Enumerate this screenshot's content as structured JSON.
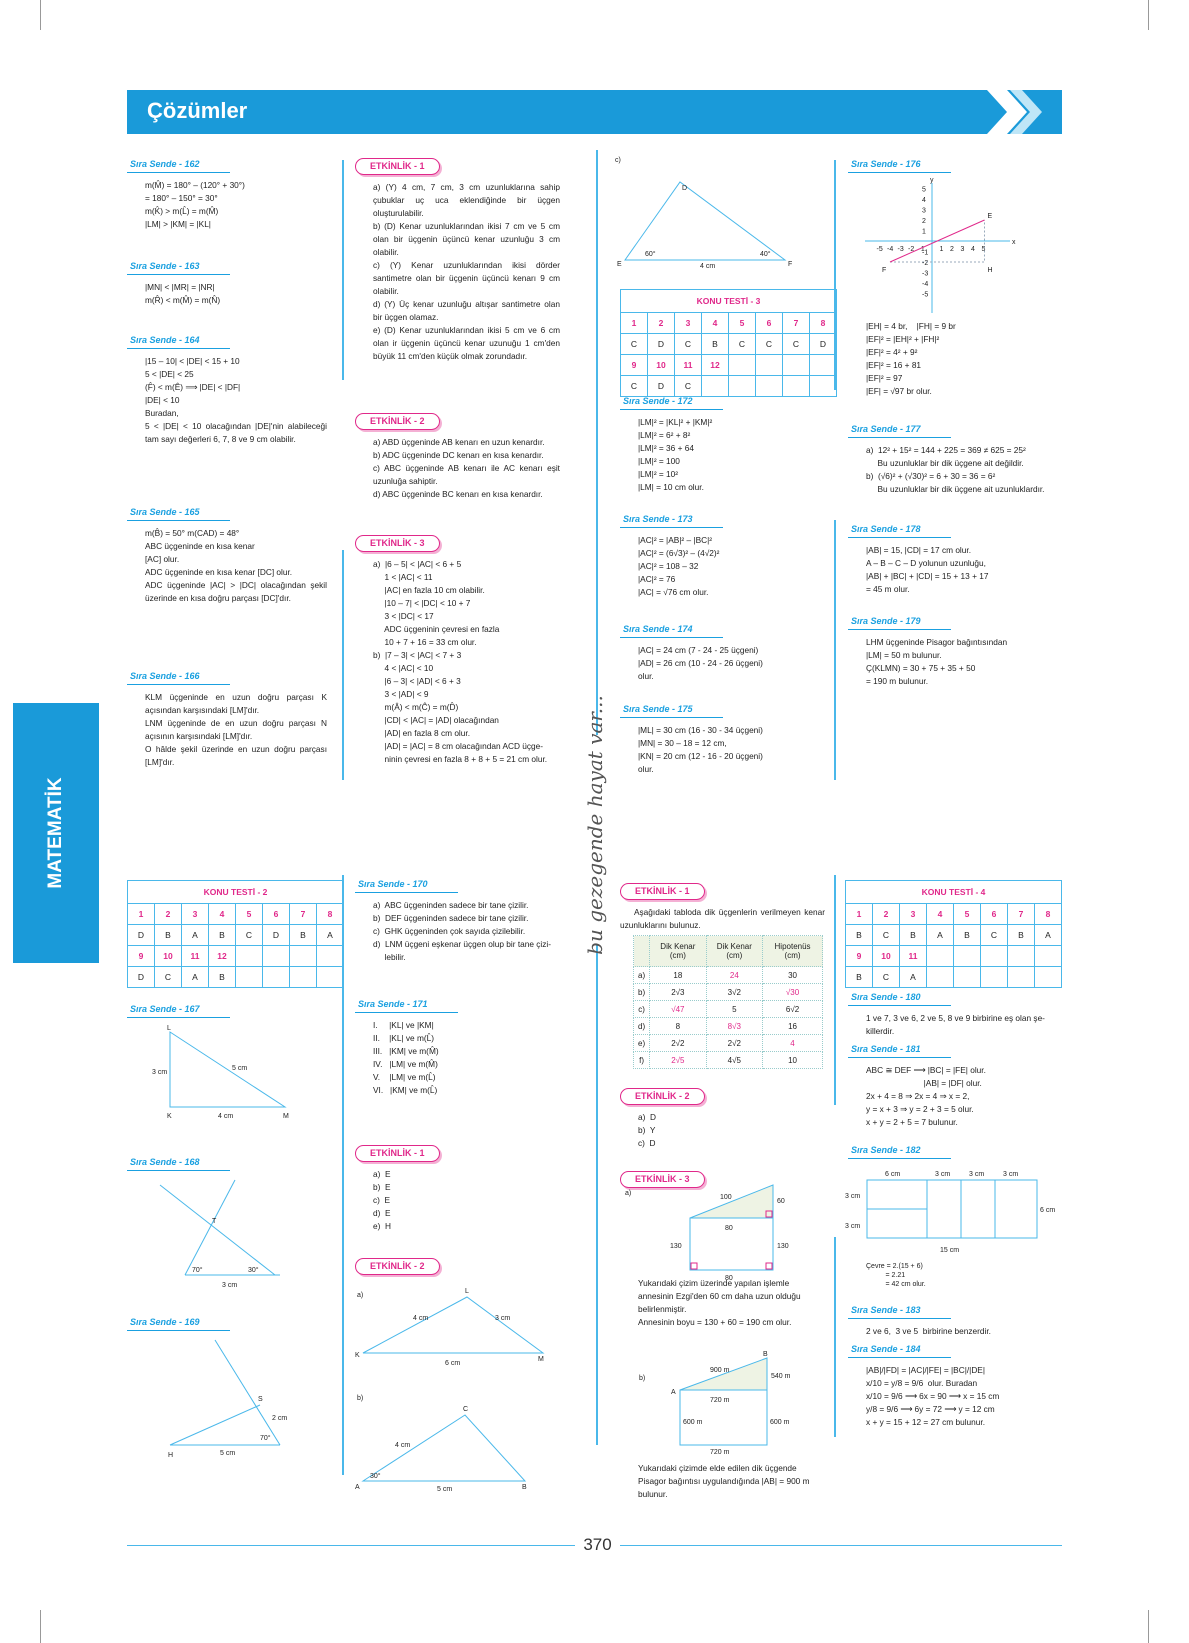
{
  "header": {
    "title": "Çözümler"
  },
  "side_tab": "MATEMATİK",
  "watermark": "bu gezegende hayat var...",
  "page_number": "370",
  "colors": {
    "accent": "#1a9ad9",
    "pink": "#e0288a"
  },
  "sections": {
    "s162": {
      "title": "Sıra Sende - 162",
      "lines": [
        "m(M̂) = 180° – (120° + 30°)",
        "= 180° – 150° = 30°",
        "m(K̂) > m(L̂) = m(M̂)",
        "|LM| > |KM| = |KL|"
      ]
    },
    "s163": {
      "title": "Sıra Sende - 163",
      "lines": [
        "|MN| < |MR| = |NR|",
        "m(R̂) < m(M̂) = m(N̂)"
      ]
    },
    "s164": {
      "title": "Sıra Sende - 164",
      "lines": [
        "|15 – 10| < |DE| < 15 + 10",
        "5 < |DE| < 25",
        "(F̂) < m(Ê) ⟹ |DE| < |DF|",
        "|DE| < 10",
        "Buradan,",
        "5 < |DE| < 10 olacağından |DE|'nin alabileceği tam sayı değerleri 6, 7, 8 ve 9 cm olabilir."
      ]
    },
    "s165": {
      "title": "Sıra Sende - 165",
      "lines": [
        "m(B̂) = 50°            m(CAD) = 48°",
        "ABC üçgeninde en kısa kenar",
        "[AC] olur.",
        "ADC üçgeninde en kısa kenar [DC] olur.",
        "ADC üçgeninde |AC| > |DC| olacağından şekil üzerinde en kısa doğru parçası [DC]'dır."
      ]
    },
    "s166": {
      "title": "Sıra Sende - 166",
      "lines": [
        "KLM üçgeninde en uzun doğru parçası K açısından karşısındaki [LM]'dır.",
        "LNM üçgeninde de en uzun doğru parçası N açısının karşısındaki [LM]'dır.",
        "O hâlde şekil üzerinde en uzun doğru parçası [LM]'dır."
      ]
    },
    "s167": {
      "title": "Sıra Sende - 167",
      "labels": [
        "L",
        "3 cm",
        "5 cm",
        "K",
        "4 cm",
        "M"
      ]
    },
    "s168": {
      "title": "Sıra Sende - 168",
      "labels": [
        "T",
        "70°",
        "30°",
        "3 cm"
      ]
    },
    "s169": {
      "title": "Sıra Sende - 169",
      "labels": [
        "S",
        "2 cm",
        "70°",
        "H",
        "5 cm"
      ]
    },
    "e1": {
      "title": "ETKİNLİK - 1",
      "lines": [
        "a)  (Y)  4 cm, 7 cm, 3 cm uzunluklarına sahip çubuklar uç uca eklendiğinde bir üçgen oluşturulabilir.",
        "b)  (D)  Kenar uzunluklarından ikisi 7 cm ve 5 cm olan bir üçgenin üçüncü kenar uzunluğu 3 cm olabilir.",
        "c)  (Y)  Kenar uzunluklarından ikisi dörder santimetre olan bir üçgenin üçüncü kenarı 9 cm olabilir.",
        "d)  (Y)  Üç kenar uzunluğu altışar santimetre olan bir üçgen olamaz.",
        "e)  (D)  Kenar uzunluklarından ikisi 5 cm ve 6 cm olan ir üçgenin üçüncü kenar uzunuğu 1 cm'den büyük 11 cm'den küçük olmak zorundadır."
      ]
    },
    "e2": {
      "title": "ETKİNLİK - 2",
      "lines": [
        "a)  ABD üçgeninde AB kenarı en uzun kenardır.",
        "b)  ADC üçgeninde DC kenarı en kısa kenardır.",
        "c)  ABC üçgeninde AB kenarı ile AC kenarı eşit uzunluğa sahiptir.",
        "d)  ABC üçgeninde BC kenarı en kısa kenardır."
      ]
    },
    "e3": {
      "title": "ETKİNLİK - 3",
      "lines": [
        "a)  |6 – 5| < |AC| < 6 + 5",
        "     1 < |AC| < 11",
        "     |AC| en fazla 10 cm olabilir.",
        "     |10 – 7| < |DC| < 10 + 7",
        "     3 < |DC| < 17",
        "     ADC üçgeninin çevresi en fazla",
        "     10 + 7 + 16 = 33 cm olur.",
        "",
        "b)  |7 – 3| < |AC| < 7 + 3",
        "     4 < |AC| < 10",
        "     |6 – 3| < |AD| < 6 + 3",
        "     3 < |AD| < 9",
        "     m(Â) < m(Ĉ) = m(D̂)",
        "     |CD| < |AC| = |AD| olacağından",
        "     |AD| en fazla 8 cm olur.",
        "     |AD| = |AC| = 8 cm olacağından ACD üçge-",
        "     ninin çevresi en fazla 8 + 8 + 5 = 21 cm olur."
      ]
    },
    "s170": {
      "title": "Sıra Sende - 170",
      "lines": [
        "a)  ABC üçgeninden sadece bir tane çizilir.",
        "b)  DEF üçgeninden sadece bir tane çizilir.",
        "c)  GHK üçgeninden çok sayıda çizilebilir.",
        "d)  LNM üçgeni eşkenar üçgen olup bir tane çizi-",
        "     lebilir."
      ]
    },
    "s171": {
      "title": "Sıra Sende - 171",
      "lines": [
        "I.     |KL| ve |KM|",
        "II.    |KL| ve m(L̂)",
        "III.   |KM| ve m(M̂)",
        "IV.   |LM| ve m(M̂)",
        "V.    |LM| ve m(L̂)",
        "VI.   |KM| ve m(L̂)"
      ]
    },
    "e1b": {
      "title": "ETKİNLİK - 1",
      "lines": [
        "a)  E",
        "b)  E",
        "c)  E",
        "d)  E",
        "e)  H"
      ]
    },
    "e2b": {
      "title": "ETKİNLİK - 2",
      "labels_a": [
        "a)",
        "L",
        "4 cm",
        "3 cm",
        "K",
        "6 cm",
        "M"
      ],
      "labels_b": [
        "b)",
        "C",
        "4 cm",
        "30°",
        "A",
        "5 cm",
        "B"
      ]
    },
    "diag_c": {
      "labels": [
        "c)",
        "D",
        "60°",
        "40°",
        "E",
        "4 cm",
        "F"
      ]
    },
    "s172": {
      "title": "Sıra Sende - 172",
      "lines": [
        "|LM|² = |KL|² + |KM|²",
        "|LM|² = 6² + 8²",
        "|LM|² = 36 + 64",
        "|LM|² = 100",
        "|LM|² = 10²",
        "|LM| = 10 cm olur."
      ]
    },
    "s173": {
      "title": "Sıra Sende - 173",
      "lines": [
        "|AC|² = |AB|² – |BC|²",
        "|AC|² = (6√3)² – (4√2)²",
        "|AC|² = 108 – 32",
        "|AC|² = 76",
        "|AC| = √76 cm olur."
      ]
    },
    "s174": {
      "title": "Sıra Sende - 174",
      "lines": [
        "|AC| = 24 cm (7 - 24 - 25 üçgeni)",
        "|AD| = 26 cm (10 - 24 - 26 üçgeni)",
        "olur."
      ]
    },
    "s175": {
      "title": "Sıra Sende - 175",
      "lines": [
        "|ML| = 30 cm (16 - 30 - 34 üçgeni)",
        "|MN| = 30 – 18 = 12 cm,",
        "|KN| = 20 cm (12 - 16 - 20 üçgeni)",
        "olur."
      ]
    },
    "e1c": {
      "title": "ETKİNLİK - 1",
      "intro": "Aşağıdaki tabloda dik üçgenlerin verilmeyen kenar uzunluklarını bulunuz.",
      "headers": [
        "",
        "Dik Kenar (cm)",
        "Dik Kenar (cm)",
        "Hipotenüs (cm)"
      ],
      "rows": [
        [
          "a)",
          "18",
          "24",
          "30"
        ],
        [
          "b)",
          "2√3",
          "3√2",
          "√30"
        ],
        [
          "c)",
          "√47",
          "5",
          "6√2"
        ],
        [
          "d)",
          "8",
          "8√3",
          "16"
        ],
        [
          "e)",
          "2√2",
          "2√2",
          "4"
        ],
        [
          "f)",
          "2√5",
          "4√5",
          "10"
        ]
      ],
      "found": [
        [
          2
        ],
        [
          3
        ],
        [
          1
        ],
        [
          2
        ],
        [
          3
        ],
        [
          1
        ]
      ]
    },
    "e2c": {
      "title": "ETKİNLİK - 2",
      "lines": [
        "a)  D",
        "b)  Y",
        "c)  D"
      ]
    },
    "e3c": {
      "title": "ETKİNLİK - 3",
      "labels_a": [
        "a)",
        "100",
        "60",
        "80",
        "130",
        "130",
        "80"
      ],
      "text_a": [
        "Yukarıdaki çizim üzerinde yapılan işlemle annesinin Ezgi'den 60 cm daha uzun olduğu belirlenmiştir.",
        "Annesinin boyu = 130 + 60 = 190 cm olur."
      ],
      "labels_b": [
        "b)",
        "B",
        "900 m",
        "540 m",
        "A",
        "720 m",
        "600 m",
        "600 m",
        "720 m"
      ],
      "text_b": [
        "Yukarıdaki çizimde elde edilen dik üçgende Pisagor bağıntısı uygulandığında |AB| = 900 m bulunur."
      ]
    },
    "s176": {
      "title": "Sıra Sende - 176",
      "axis": {
        "x": "x",
        "y": "y",
        "xticks": [
          "-5",
          "-4",
          "-3",
          "-2",
          "-1",
          "1",
          "2",
          "3",
          "4",
          "5"
        ],
        "yticks": [
          "5",
          "4",
          "3",
          "2",
          "1",
          "-1",
          "-2",
          "-3",
          "-4",
          "-5"
        ]
      },
      "points": {
        "E": [
          5,
          2
        ],
        "F": [
          -4,
          -2
        ],
        "H": [
          5,
          -2
        ]
      },
      "lines": [
        "|EH| = 4 br,    |FH| = 9 br",
        "|EF|² = |EH|² + |FH|²",
        "|EF|² = 4² + 9²",
        "|EF|² = 16 + 81",
        "|EF|² = 97",
        "|EF| = √97 br olur."
      ]
    },
    "s177": {
      "title": "Sıra Sende - 177",
      "lines": [
        "a)  12² + 15² = 144 + 225 = 369 ≠ 625 = 25²",
        "     Bu uzunluklar bir dik üçgene ait değildir.",
        "b)  (√6)² + (√30)² = 6 + 30 = 36 = 6²",
        "     Bu uzunluklar bir dik üçgene ait uzunluklardır."
      ]
    },
    "s178": {
      "title": "Sıra Sende - 178",
      "lines": [
        "|AB| = 15, |CD| = 17 cm olur.",
        "A – B – C – D yolunun uzunluğu,",
        "|AB| + |BC| + |CD| = 15 + 13 + 17",
        "= 45 m olur."
      ]
    },
    "s179": {
      "title": "Sıra Sende - 179",
      "lines": [
        "LHM üçgeninde Pisagor bağıntısından",
        "|LM| = 50 m bulunur.",
        "Ç(KLMN) = 30 + 75 + 35 + 50",
        "= 190 m bulunur."
      ]
    },
    "s180": {
      "title": "Sıra Sende - 180",
      "lines": [
        "1 ve 7, 3 ve 6, 2 ve 5, 8 ve 9 birbirine eş olan şe-",
        "killerdir."
      ]
    },
    "s181": {
      "title": "Sıra Sende - 181",
      "lines": [
        "ABC ≅ DEF ⟶ |BC| = |FE| olur.",
        "                         |AB| = |DF| olur.",
        "2x + 4 = 8 ⇒ 2x = 4 ⇒ x = 2,",
        "y = x + 3 ⇒ y = 2 + 3 = 5 olur.",
        "x + y = 2 + 5 = 7 bulunur."
      ]
    },
    "s182": {
      "title": "Sıra Sende - 182",
      "labels": [
        "6 cm",
        "3 cm",
        "3 cm",
        "3 cm",
        "3 cm",
        "3 cm",
        "6 cm",
        "15 cm"
      ],
      "lines": [
        "Çevre = 2.(15 + 6)",
        "          = 2.21",
        "          = 42 cm olur."
      ]
    },
    "s183": {
      "title": "Sıra Sende - 183",
      "lines": [
        "2 ve 6,  3 ve 5  birbirine benzerdir."
      ]
    },
    "s184": {
      "title": "Sıra Sende - 184",
      "lines": [
        "|AB|/|FD| = |AC|/|FE| = |BC|/|DE|",
        "x/10 = y/8 = 9/6  olur. Buradan",
        "x/10 = 9/6 ⟶ 6x = 90 ⟶ x = 15 cm",
        "y/8 = 9/6 ⟶ 6y = 72 ⟶ y = 12 cm",
        "x + y = 15 + 12 = 27 cm bulunur."
      ]
    }
  },
  "tests": {
    "kt2": {
      "title": "KONU TESTİ - 2",
      "n1": [
        "1",
        "2",
        "3",
        "4",
        "5",
        "6",
        "7",
        "8"
      ],
      "a1": [
        "D",
        "B",
        "A",
        "B",
        "C",
        "D",
        "B",
        "A"
      ],
      "n2": [
        "9",
        "10",
        "11",
        "12",
        "",
        "",
        "",
        ""
      ],
      "a2": [
        "D",
        "C",
        "A",
        "B",
        "",
        "",
        "",
        ""
      ]
    },
    "kt3": {
      "title": "KONU TESTİ - 3",
      "n1": [
        "1",
        "2",
        "3",
        "4",
        "5",
        "6",
        "7",
        "8"
      ],
      "a1": [
        "C",
        "D",
        "C",
        "B",
        "C",
        "C",
        "C",
        "D"
      ],
      "n2": [
        "9",
        "10",
        "11",
        "12",
        "",
        "",
        "",
        ""
      ],
      "a2": [
        "C",
        "D",
        "C",
        "",
        "",
        "",
        "",
        ""
      ]
    },
    "kt4": {
      "title": "KONU TESTİ - 4",
      "n1": [
        "1",
        "2",
        "3",
        "4",
        "5",
        "6",
        "7",
        "8"
      ],
      "a1": [
        "B",
        "C",
        "B",
        "A",
        "B",
        "C",
        "B",
        "A"
      ],
      "n2": [
        "9",
        "10",
        "11",
        "",
        "",
        "",
        "",
        ""
      ],
      "a2": [
        "B",
        "C",
        "A",
        "",
        "",
        "",
        "",
        ""
      ]
    }
  }
}
